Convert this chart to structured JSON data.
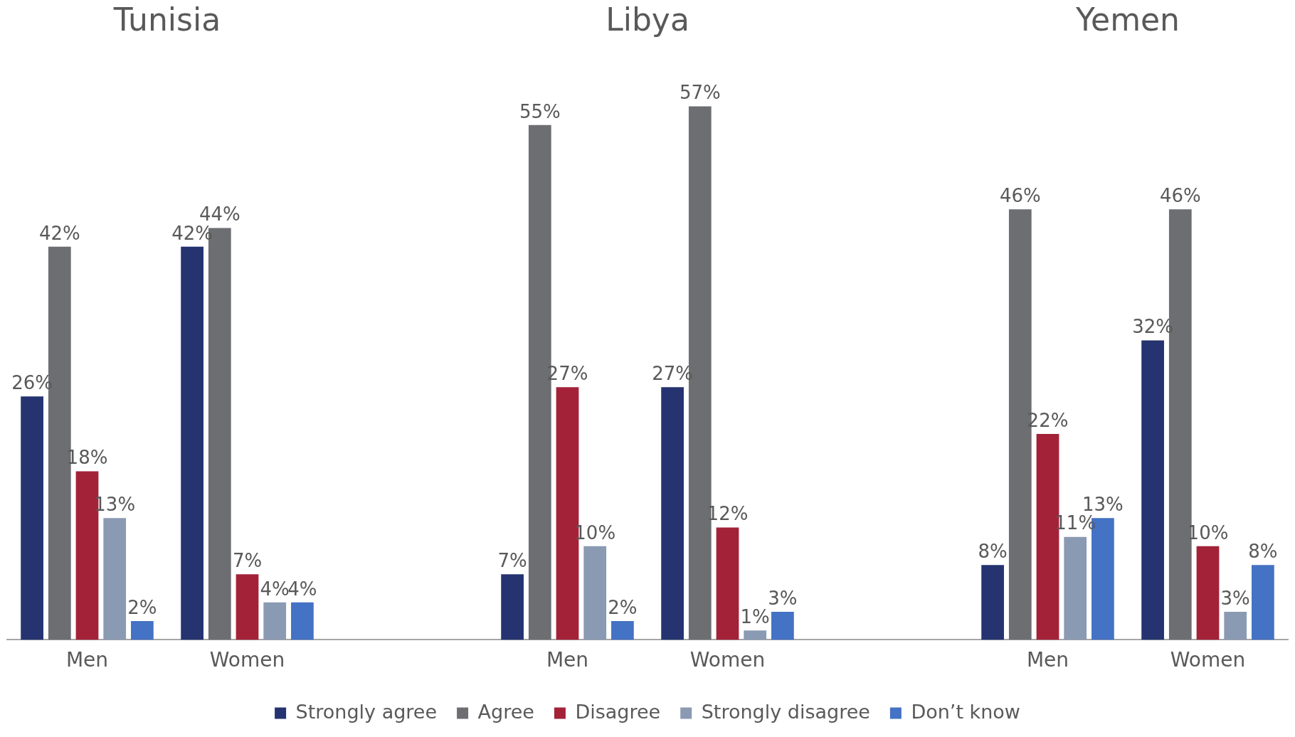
{
  "chart_data": {
    "type": "bar",
    "categories": [
      "Men",
      "Women",
      null,
      "Men",
      "Women",
      null,
      "Men",
      "Women"
    ],
    "annotations": [
      "Tunisia",
      "Libya",
      "Yemen"
    ],
    "series": [
      {
        "name": "Strongly agree",
        "color": "#253370",
        "values": [
          26,
          42,
          null,
          7,
          27,
          null,
          8,
          32
        ],
        "value_labels": [
          "26%",
          "42%",
          null,
          "7%",
          "27%",
          null,
          "8%",
          "32%"
        ]
      },
      {
        "name": "Agree",
        "color": "#6d6e72",
        "values": [
          42,
          44,
          null,
          55,
          57,
          null,
          46,
          46
        ],
        "value_labels": [
          "42%",
          "44%",
          null,
          "55%",
          "57%",
          null,
          "46%",
          "46%"
        ]
      },
      {
        "name": "Disagree",
        "color": "#a32238",
        "values": [
          18,
          7,
          null,
          27,
          12,
          null,
          22,
          10
        ],
        "value_labels": [
          "18%",
          "7%",
          null,
          "27%",
          "12%",
          null,
          "22%",
          "10%"
        ]
      },
      {
        "name": "Strongly disagree",
        "color": "#8a9ab3",
        "values": [
          13,
          4,
          null,
          10,
          1,
          null,
          11,
          3
        ],
        "value_labels": [
          "13%",
          "4%",
          null,
          "10%",
          "1%",
          null,
          "11%",
          "3%"
        ]
      },
      {
        "name": "Don’t know",
        "color": "#4472c4",
        "values": [
          2,
          4,
          null,
          2,
          3,
          null,
          13,
          8
        ],
        "value_labels": [
          "2%",
          "4%",
          null,
          "2%",
          "3%",
          null,
          "13%",
          "8%"
        ]
      }
    ],
    "legend": "bottom"
  }
}
